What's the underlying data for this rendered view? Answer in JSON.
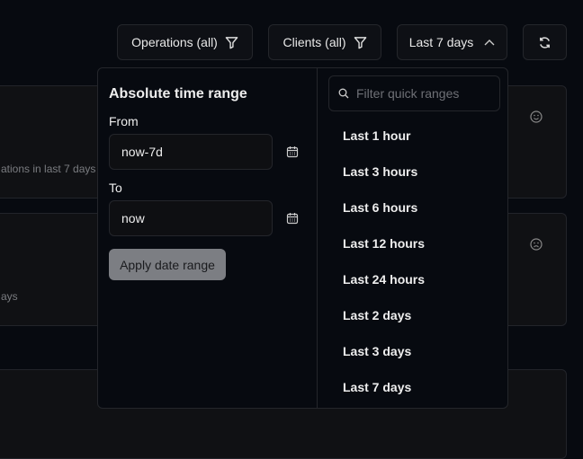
{
  "toolbar": {
    "operations": "Operations (all)",
    "clients": "Clients (all)",
    "range": "Last 7 days"
  },
  "cards": [
    {
      "subtitle": "ations in last 7 days"
    },
    {
      "subtitle": "ays"
    }
  ],
  "popover": {
    "title": "Absolute time range",
    "from_label": "From",
    "from_value": "now-7d",
    "to_label": "To",
    "to_value": "now",
    "apply": "Apply date range",
    "search_placeholder": "Filter quick ranges",
    "quick_ranges": [
      "Last 1 hour",
      "Last 3 hours",
      "Last 6 hours",
      "Last 12 hours",
      "Last 24 hours",
      "Last 2 days",
      "Last 3 days",
      "Last 7 days"
    ]
  }
}
